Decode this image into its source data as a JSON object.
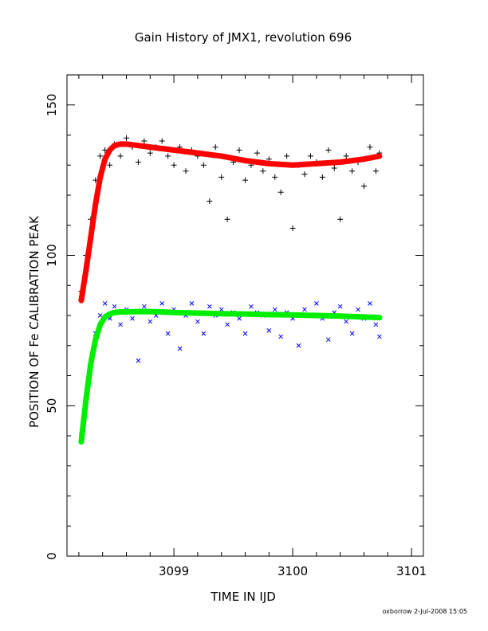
{
  "chart_data": {
    "type": "scatter",
    "title": "Gain History of JMX1, revolution 696",
    "xlabel": "TIME IN IJD",
    "ylabel": "POSITION OF Fe CALIBRATION PEAK",
    "xlim": [
      3098.1,
      3101.1
    ],
    "ylim": [
      0,
      160
    ],
    "xticks": [
      3099,
      3100,
      3101
    ],
    "yticks": [
      0,
      50,
      100,
      150
    ],
    "xtick_labels": [
      "3099",
      "3100",
      "3101"
    ],
    "ytick_labels": [
      "0",
      "50",
      "100",
      "150"
    ],
    "grid": false,
    "legend": "none",
    "footer": "oxborrow  2-Jul-2008 15:05",
    "series": [
      {
        "marker": "plus",
        "color": "#000000",
        "x": [
          3098.22,
          3098.26,
          3098.3,
          3098.34,
          3098.38,
          3098.42,
          3098.46,
          3098.5,
          3098.55,
          3098.6,
          3098.65,
          3098.7,
          3098.75,
          3098.8,
          3098.85,
          3098.9,
          3098.95,
          3099.0,
          3099.05,
          3099.1,
          3099.15,
          3099.2,
          3099.25,
          3099.3,
          3099.35,
          3099.4,
          3099.45,
          3099.5,
          3099.55,
          3099.6,
          3099.65,
          3099.7,
          3099.75,
          3099.8,
          3099.85,
          3099.9,
          3099.95,
          3100.0,
          3100.05,
          3100.1,
          3100.15,
          3100.2,
          3100.25,
          3100.3,
          3100.35,
          3100.4,
          3100.45,
          3100.5,
          3100.55,
          3100.6,
          3100.65,
          3100.7,
          3100.73
        ],
        "y": [
          88,
          100,
          112,
          125,
          133,
          135,
          130,
          137,
          133,
          139,
          136,
          131,
          138,
          134,
          136,
          138,
          133,
          130,
          136,
          128,
          135,
          133,
          130,
          118,
          136,
          126,
          112,
          131,
          135,
          125,
          130,
          134,
          128,
          132,
          126,
          121,
          133,
          109,
          130,
          127,
          133,
          131,
          126,
          135,
          129,
          112,
          133,
          128,
          131,
          123,
          136,
          128,
          134
        ]
      },
      {
        "marker": "x",
        "color": "#0000ff",
        "x": [
          3098.22,
          3098.26,
          3098.3,
          3098.34,
          3098.38,
          3098.42,
          3098.46,
          3098.5,
          3098.55,
          3098.6,
          3098.65,
          3098.7,
          3098.75,
          3098.8,
          3098.85,
          3098.9,
          3098.95,
          3099.0,
          3099.05,
          3099.1,
          3099.15,
          3099.2,
          3099.25,
          3099.3,
          3099.35,
          3099.4,
          3099.45,
          3099.5,
          3099.55,
          3099.6,
          3099.65,
          3099.7,
          3099.75,
          3099.8,
          3099.85,
          3099.9,
          3099.95,
          3100.0,
          3100.05,
          3100.1,
          3100.15,
          3100.2,
          3100.25,
          3100.3,
          3100.35,
          3100.4,
          3100.45,
          3100.5,
          3100.55,
          3100.6,
          3100.65,
          3100.7,
          3100.73
        ],
        "y": [
          40,
          52,
          64,
          74,
          80,
          84,
          79,
          83,
          77,
          82,
          79,
          65,
          83,
          78,
          80,
          84,
          74,
          82,
          69,
          80,
          84,
          78,
          74,
          83,
          80,
          82,
          77,
          81,
          79,
          74,
          83,
          81,
          80,
          75,
          82,
          73,
          81,
          79,
          70,
          82,
          80,
          84,
          79,
          72,
          81,
          83,
          78,
          74,
          82,
          79,
          84,
          77,
          73
        ]
      },
      {
        "marker": "plus-line",
        "color": "#ff0000",
        "x": [
          3098.22,
          3098.26,
          3098.3,
          3098.34,
          3098.38,
          3098.42,
          3098.46,
          3098.5,
          3098.55,
          3098.6,
          3098.7,
          3098.8,
          3098.9,
          3099.0,
          3099.2,
          3099.4,
          3099.6,
          3099.8,
          3100.0,
          3100.2,
          3100.4,
          3100.6,
          3100.73
        ],
        "y": [
          85,
          95,
          106,
          117,
          126,
          132,
          135,
          136.5,
          137,
          137,
          136.5,
          136,
          135.5,
          135,
          134,
          133,
          131.5,
          130.5,
          130,
          130.5,
          131,
          132,
          133
        ]
      },
      {
        "marker": "x-line",
        "color": "#00ee00",
        "x": [
          3098.22,
          3098.26,
          3098.3,
          3098.34,
          3098.38,
          3098.42,
          3098.46,
          3098.5,
          3098.55,
          3098.6,
          3098.7,
          3098.8,
          3098.9,
          3099.0,
          3099.2,
          3099.4,
          3099.6,
          3099.8,
          3100.0,
          3100.2,
          3100.4,
          3100.6,
          3100.73
        ],
        "y": [
          38,
          52,
          64,
          72,
          77,
          79.5,
          80.5,
          81,
          81.2,
          81.2,
          81.3,
          81.3,
          81.2,
          81,
          80.8,
          80.6,
          80.5,
          80.3,
          80.2,
          80,
          79.8,
          79.5,
          79.3
        ]
      }
    ]
  }
}
